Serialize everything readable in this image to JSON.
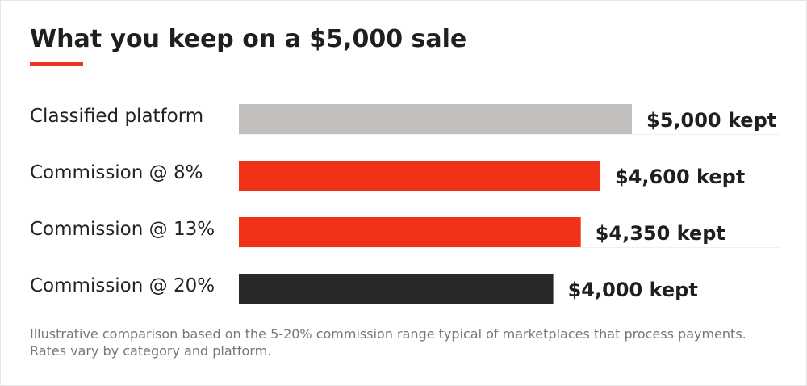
{
  "header": {
    "title": "What you keep on a $5,000 sale"
  },
  "colors": {
    "accent": "#f03219",
    "classified": "#c2bebb",
    "commission": "#f03219",
    "commission_high": "#2a2928",
    "gridline": "#efefef"
  },
  "chart_data": {
    "type": "bar",
    "orientation": "horizontal",
    "title": "What you keep on a $5,000 sale",
    "categories": [
      "Classified platform",
      "Commission @ 8%",
      "Commission @ 13%",
      "Commission @ 20%"
    ],
    "values": [
      5000,
      4600,
      4350,
      4000
    ],
    "data_labels": [
      "$5,000 kept",
      "$4,600 kept",
      "$4,350 kept",
      "$4,000 kept"
    ],
    "bar_colors": [
      "#c2bebb",
      "#f03219",
      "#f03219",
      "#2a2928"
    ],
    "xlim": [
      0,
      5000
    ],
    "xlabel": "",
    "ylabel": "",
    "grid": false,
    "legend": "none"
  },
  "footnote": "Illustrative comparison based on the 5-20% commission range typical of marketplaces that process payments. Rates vary by category and platform."
}
